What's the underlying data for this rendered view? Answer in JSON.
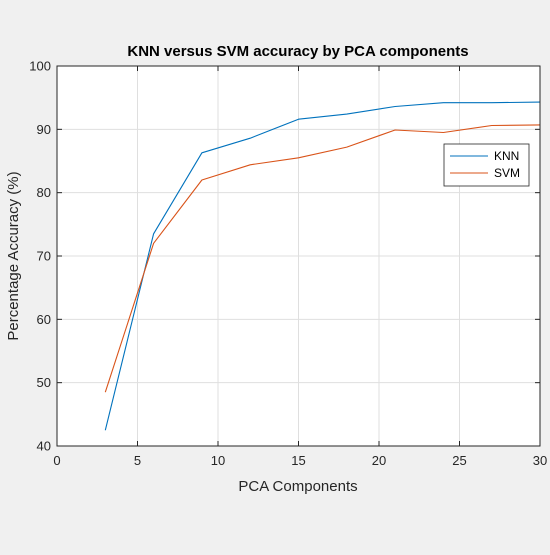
{
  "chart_data": {
    "type": "line",
    "title": "KNN versus SVM accuracy by PCA components",
    "xlabel": "PCA Components",
    "ylabel": "Percentage Accuracy (%)",
    "xlim": [
      0,
      30
    ],
    "ylim": [
      40,
      100
    ],
    "xticks": [
      0,
      5,
      10,
      15,
      20,
      25,
      30
    ],
    "yticks": [
      40,
      50,
      60,
      70,
      80,
      90,
      100
    ],
    "grid": true,
    "legend_position": "top-right",
    "series": [
      {
        "name": "KNN",
        "color": "#0072BD",
        "x": [
          3,
          6,
          9,
          12,
          15,
          18,
          21,
          24,
          27,
          30
        ],
        "y": [
          42.5,
          73.5,
          86.3,
          88.6,
          91.6,
          92.4,
          93.6,
          94.2,
          94.2,
          94.3
        ]
      },
      {
        "name": "SVM",
        "color": "#D95319",
        "x": [
          3,
          6,
          9,
          12,
          15,
          18,
          21,
          24,
          27,
          30
        ],
        "y": [
          48.5,
          72.0,
          82.0,
          84.4,
          85.5,
          87.2,
          89.9,
          89.5,
          90.6,
          90.7
        ]
      }
    ]
  }
}
